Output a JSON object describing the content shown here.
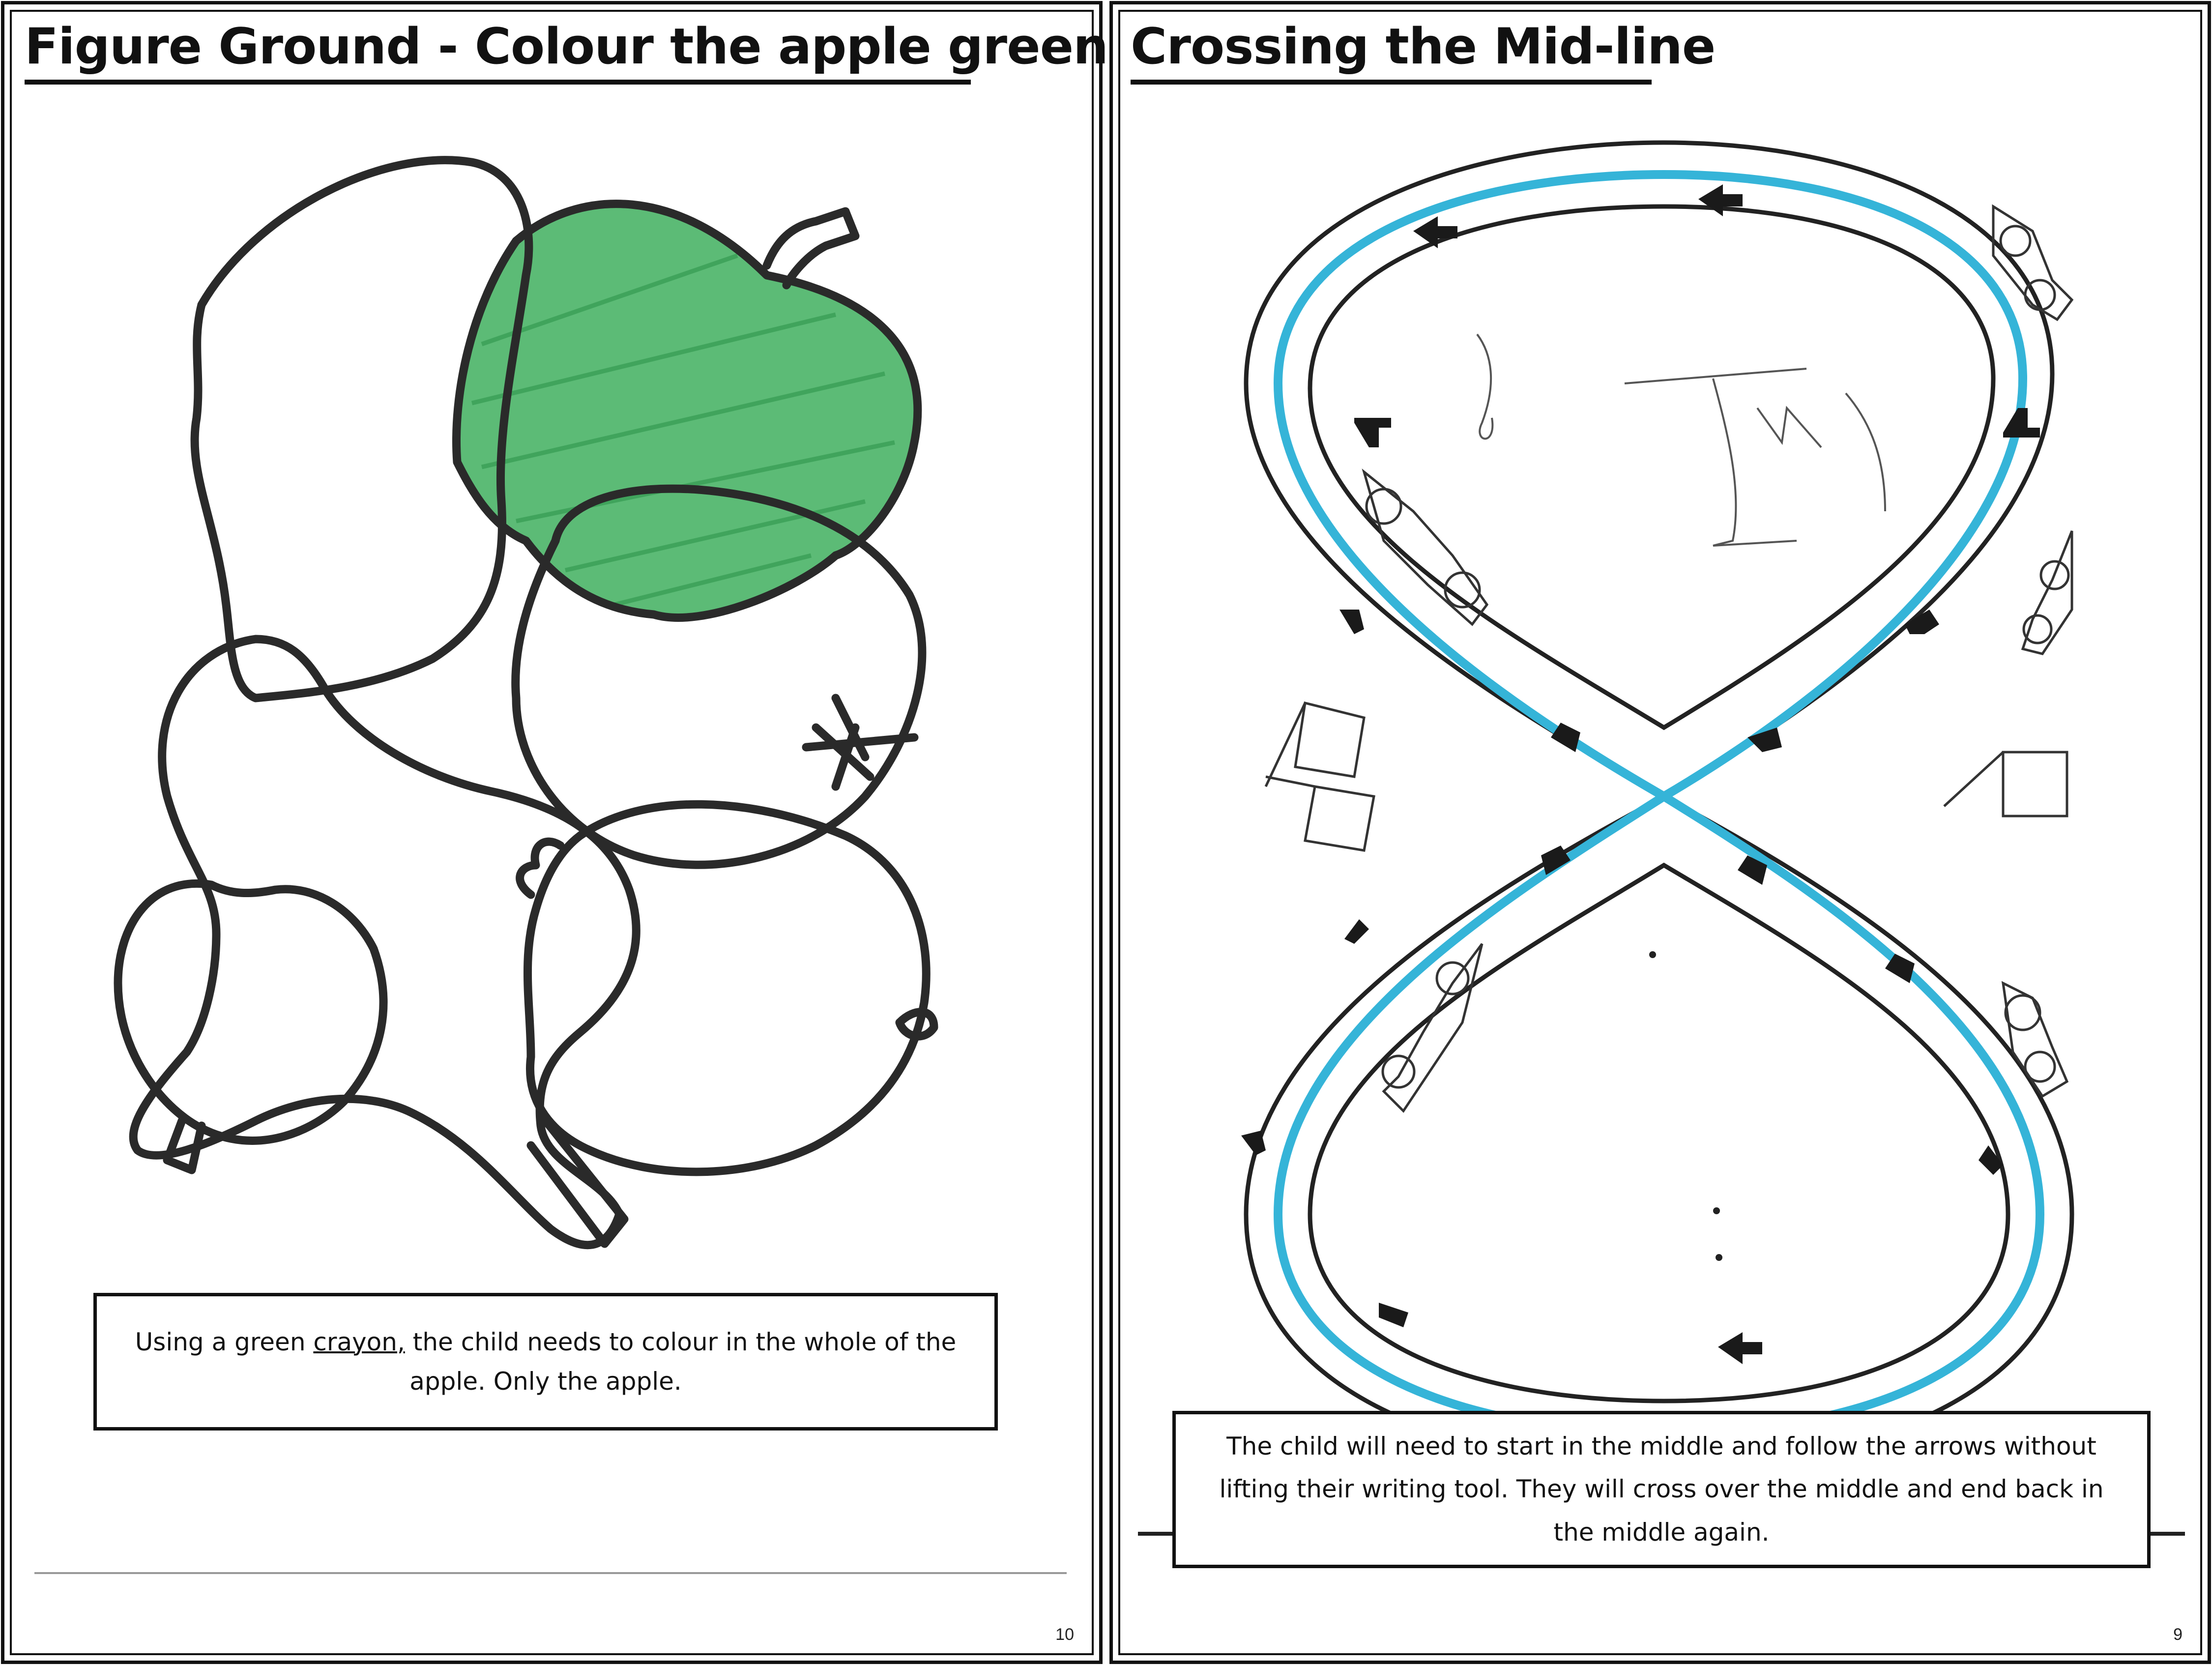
{
  "left_page": {
    "title": "Figure Ground - Colour the apple green",
    "caption_before": "Using a green ",
    "caption_underlined": "crayon,",
    "caption_after": " the child needs to colour in the whole of the apple. Only the apple.",
    "page_number": "10",
    "colors": {
      "outline": "#2a2a2a",
      "apple_fill": "#2ea84f"
    }
  },
  "right_page": {
    "title": "Crossing the Mid-line",
    "caption": "The child will need to start in the middle and follow the arrows without lifting their writing tool. They will cross over the middle and end back in the middle again.",
    "page_number": "9",
    "colors": {
      "track": "#222222",
      "traced_path": "#35b4d8"
    }
  }
}
